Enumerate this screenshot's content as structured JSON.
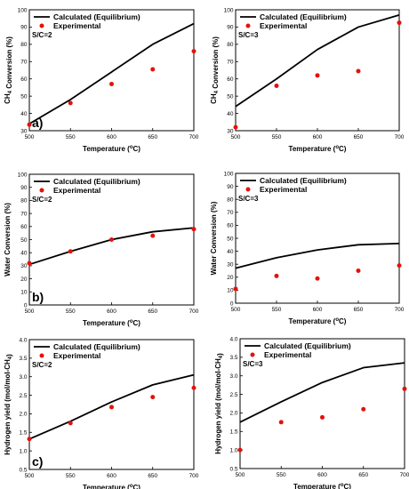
{
  "figure": {
    "legend_line_label": "Calculated (Equilibrium)",
    "legend_marker_label": "Experimental",
    "xlabel": "Temperature (°C)",
    "colors": {
      "line": "#000000",
      "marker": "#e3120b",
      "frame": "#000000"
    }
  },
  "chart_data": [
    {
      "type": "line",
      "condition": "S/C=2",
      "panel_label": "a)",
      "ylabel": "CH4 Conversion (%)",
      "xlim": [
        500,
        700
      ],
      "ylim": [
        30,
        100
      ],
      "xticks": [
        500,
        550,
        600,
        650,
        700
      ],
      "yticks": [
        30,
        40,
        50,
        60,
        70,
        80,
        90,
        100
      ],
      "series": [
        {
          "name": "Calculated (Equilibrium)",
          "kind": "line",
          "x": [
            500,
            550,
            600,
            650,
            700
          ],
          "y": [
            34,
            48,
            64,
            80,
            92
          ]
        },
        {
          "name": "Experimental",
          "kind": "scatter",
          "x": [
            500,
            550,
            600,
            650,
            700
          ],
          "y": [
            33.5,
            46,
            57,
            65.5,
            76
          ]
        }
      ]
    },
    {
      "type": "line",
      "condition": "S/C=3",
      "panel_label": "",
      "ylabel": "CH4 Conversion (%)",
      "xlim": [
        500,
        700
      ],
      "ylim": [
        30,
        100
      ],
      "xticks": [
        500,
        550,
        600,
        650,
        700
      ],
      "yticks": [
        30,
        40,
        50,
        60,
        70,
        80,
        90,
        100
      ],
      "series": [
        {
          "name": "Calculated (Equilibrium)",
          "kind": "line",
          "x": [
            500,
            550,
            600,
            650,
            700
          ],
          "y": [
            44,
            60,
            77,
            90,
            97
          ]
        },
        {
          "name": "Experimental",
          "kind": "scatter",
          "x": [
            500,
            550,
            600,
            650,
            700
          ],
          "y": [
            32,
            56,
            62,
            64.5,
            92.5
          ]
        }
      ]
    },
    {
      "type": "line",
      "condition": "S/C=2",
      "panel_label": "b)",
      "ylabel": "Water Conversion (%)",
      "xlim": [
        500,
        700
      ],
      "ylim": [
        0,
        100
      ],
      "xticks": [
        500,
        550,
        600,
        650,
        700
      ],
      "yticks": [
        0,
        10,
        20,
        30,
        40,
        50,
        60,
        70,
        80,
        90,
        100
      ],
      "series": [
        {
          "name": "Calculated (Equilibrium)",
          "kind": "line",
          "x": [
            500,
            550,
            600,
            650,
            700
          ],
          "y": [
            31,
            41,
            50,
            56,
            59
          ]
        },
        {
          "name": "Experimental",
          "kind": "scatter",
          "x": [
            500,
            550,
            600,
            650,
            700
          ],
          "y": [
            32,
            41,
            50,
            53,
            58
          ]
        }
      ]
    },
    {
      "type": "line",
      "condition": "S/C=3",
      "panel_label": "",
      "ylabel": "Water Conversion (%)",
      "xlim": [
        500,
        700
      ],
      "ylim": [
        0,
        100
      ],
      "xticks": [
        500,
        550,
        600,
        650,
        700
      ],
      "yticks": [
        0,
        10,
        20,
        30,
        40,
        50,
        60,
        70,
        80,
        90,
        100
      ],
      "series": [
        {
          "name": "Calculated (Equilibrium)",
          "kind": "line",
          "x": [
            500,
            550,
            600,
            650,
            700
          ],
          "y": [
            27,
            35,
            41,
            45,
            46
          ]
        },
        {
          "name": "Experimental",
          "kind": "scatter",
          "x": [
            500,
            550,
            600,
            650,
            700
          ],
          "y": [
            11,
            21,
            19,
            25,
            29
          ]
        }
      ]
    },
    {
      "type": "line",
      "condition": "S/C=2",
      "panel_label": "c)",
      "ylabel": "Hydrogen yield (mol/mol-CH4)",
      "xlim": [
        500,
        700
      ],
      "ylim": [
        0.5,
        4.0
      ],
      "xticks": [
        500,
        550,
        600,
        650,
        700
      ],
      "yticks": [
        0.5,
        1.0,
        1.5,
        2.0,
        2.5,
        3.0,
        3.5,
        4.0
      ],
      "series": [
        {
          "name": "Calculated (Equilibrium)",
          "kind": "line",
          "x": [
            500,
            550,
            600,
            650,
            700
          ],
          "y": [
            1.32,
            1.8,
            2.32,
            2.78,
            3.05
          ]
        },
        {
          "name": "Experimental",
          "kind": "scatter",
          "x": [
            500,
            550,
            600,
            650,
            700
          ],
          "y": [
            1.32,
            1.75,
            2.18,
            2.45,
            2.7
          ]
        }
      ]
    },
    {
      "type": "line",
      "condition": "S/C=3",
      "panel_label": "",
      "ylabel": "Hydrogen yield (mol/mol-CH4)",
      "xlim": [
        500,
        700
      ],
      "ylim": [
        0.5,
        4.0
      ],
      "xticks": [
        500,
        550,
        600,
        650,
        700
      ],
      "yticks": [
        0.5,
        1.0,
        1.5,
        2.0,
        2.5,
        3.0,
        3.5,
        4.0
      ],
      "series": [
        {
          "name": "Calculated (Equilibrium)",
          "kind": "line",
          "x": [
            500,
            550,
            600,
            650,
            700
          ],
          "y": [
            1.75,
            2.3,
            2.82,
            3.22,
            3.35
          ]
        },
        {
          "name": "Experimental",
          "kind": "scatter",
          "x": [
            500,
            550,
            600,
            650,
            700
          ],
          "y": [
            1.0,
            1.75,
            1.88,
            2.1,
            2.65
          ]
        }
      ]
    }
  ]
}
